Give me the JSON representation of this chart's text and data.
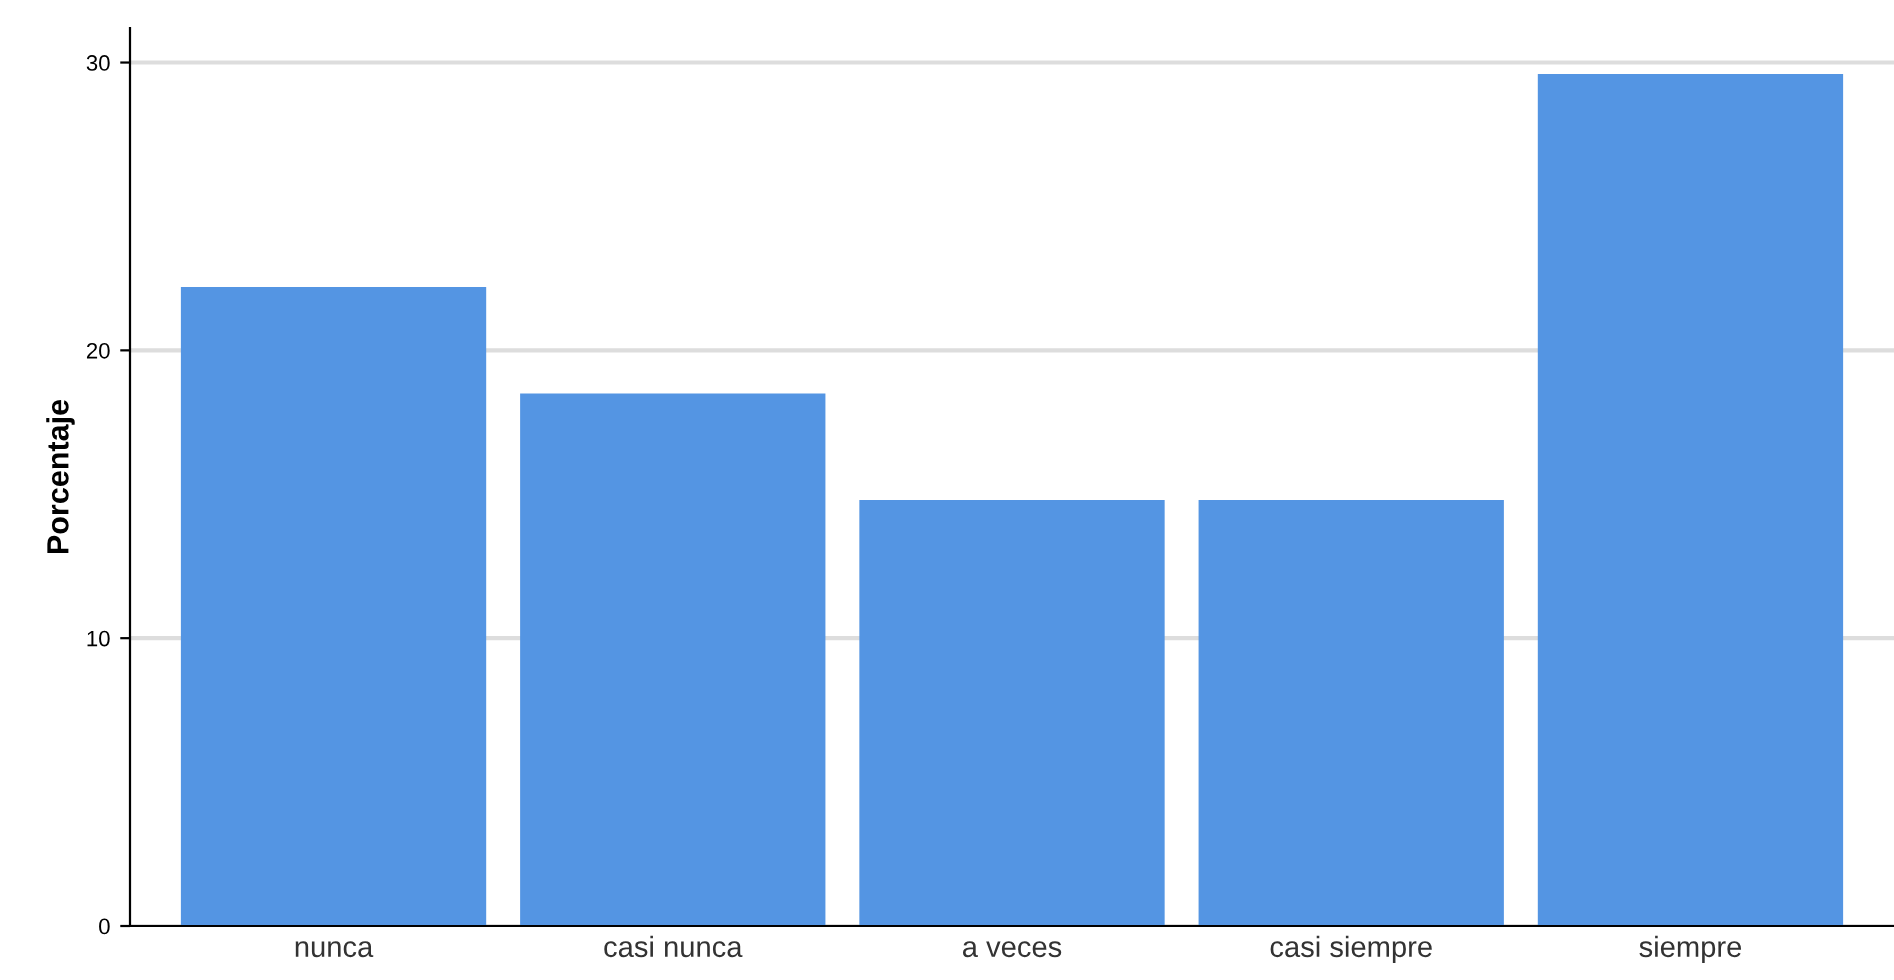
{
  "chart_data": {
    "type": "bar",
    "ylabel": "Porcentaje",
    "categories": [
      "nunca",
      "casi nunca",
      "a veces",
      "casi siempre",
      "siempre"
    ],
    "values": [
      22.2,
      18.5,
      14.8,
      14.8,
      29.6
    ],
    "color": "#5495e3",
    "ylim": [
      0,
      31.2
    ],
    "yticks": [
      0,
      10,
      20,
      30
    ],
    "grid": "y"
  }
}
